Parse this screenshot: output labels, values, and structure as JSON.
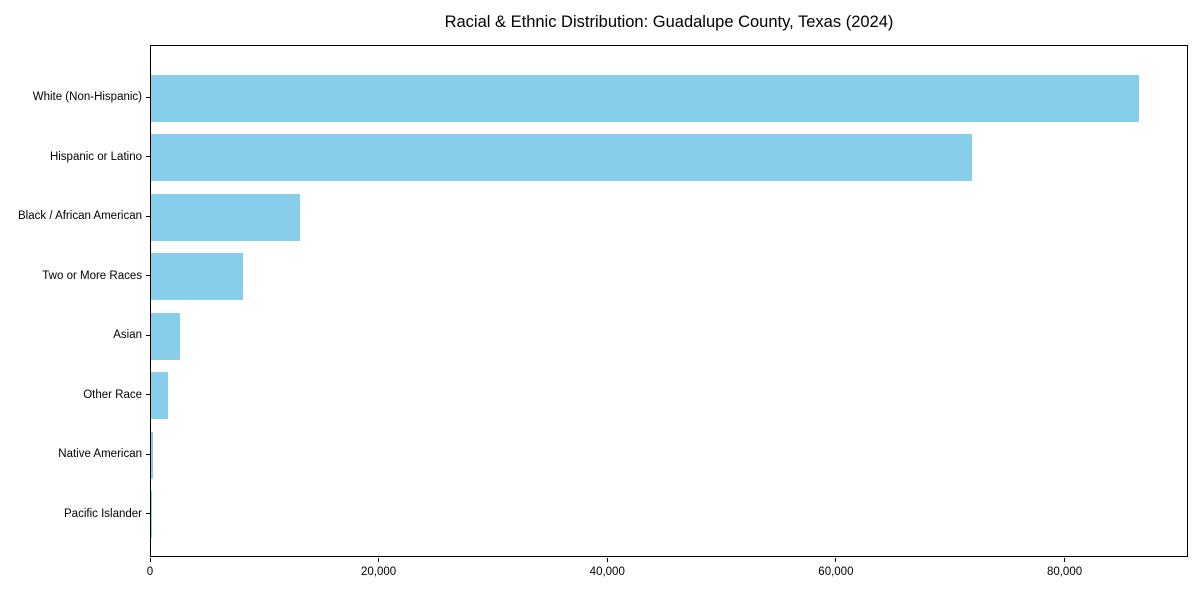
{
  "chart_data": {
    "type": "bar",
    "orientation": "horizontal",
    "title": "Racial & Ethnic Distribution: Guadalupe County, Texas (2024)",
    "categories": [
      "White (Non-Hispanic)",
      "Hispanic or Latino",
      "Black / African American",
      "Two or More Races",
      "Asian",
      "Other Race",
      "Native American",
      "Pacific Islander"
    ],
    "values": [
      86400,
      71800,
      13000,
      8050,
      2550,
      1500,
      200,
      75
    ],
    "xlabel": "",
    "ylabel": "",
    "xlim": [
      0,
      90800
    ],
    "xticks": [
      0,
      20000,
      40000,
      60000,
      80000
    ],
    "xtick_labels": [
      "0",
      "20,000",
      "40,000",
      "60,000",
      "80,000"
    ],
    "bar_color": "#87CEEB",
    "spine_color": "#000000",
    "text_color": "#000000",
    "background_color": "#ffffff",
    "grid": false,
    "legend": null
  }
}
